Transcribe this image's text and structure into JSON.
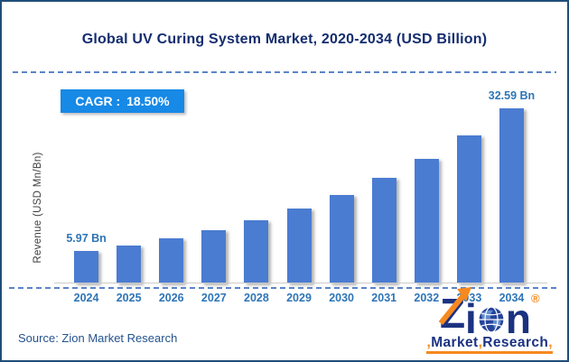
{
  "title": "Global UV Curing System Market, 2020-2034 (USD Billion)",
  "cagr_badge": {
    "label": "CAGR :",
    "value": "18.50%"
  },
  "y_axis_label": "Revenue (USD Mn/Bn)",
  "source_text": "Source: Zion Market Research",
  "logo": {
    "z": "Z",
    "i": "i",
    "n": "n",
    "reg": "®",
    "market": "Market",
    "research": "Research",
    "comma": ",",
    "navy": "#1b3281",
    "orange": "#f6891f"
  },
  "colors": {
    "bar": "#4a7cd1",
    "title_navy": "#152d6e",
    "label_blue": "#2e75b6",
    "badge_bg": "#1789e6",
    "frame_border": "#1f4e79",
    "dashed_line": "#5b84c8",
    "axis_line": "#cccccc",
    "source_text": "#24528f"
  },
  "chart_data": {
    "type": "bar",
    "title": "Global UV Curing System Market, 2020-2034 (USD Billion)",
    "categories": [
      "2024",
      "2025",
      "2026",
      "2027",
      "2028",
      "2029",
      "2030",
      "2031",
      "2032",
      "2033",
      "2034"
    ],
    "values": [
      5.97,
      7.07,
      8.38,
      9.93,
      11.77,
      13.95,
      16.53,
      19.58,
      23.21,
      27.5,
      32.59
    ],
    "data_labels": [
      {
        "index": 0,
        "text": "5.97 Bn"
      },
      {
        "index": 10,
        "text": "32.59 Bn"
      }
    ],
    "cagr": "18.50%",
    "xlabel": "",
    "ylabel": "Revenue (USD Mn/Bn)",
    "ylim": [
      0,
      34
    ],
    "grid": false,
    "legend": "none",
    "bar_color": "#4a7cd1"
  }
}
